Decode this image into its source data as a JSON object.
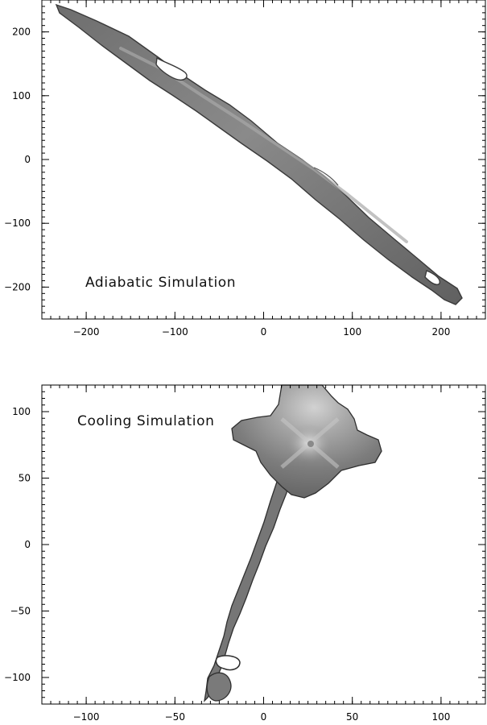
{
  "figure": {
    "panels": [
      {
        "id": "adiabatic",
        "label": "Adiabatic Simulation",
        "x_ticks": [
          {
            "value": -200,
            "label": "−200"
          },
          {
            "value": -100,
            "label": "−100"
          },
          {
            "value": 0,
            "label": "0"
          },
          {
            "value": 100,
            "label": "100"
          },
          {
            "value": 200,
            "label": "200"
          }
        ],
        "y_ticks": [
          {
            "value": 200,
            "label": "200"
          },
          {
            "value": 100,
            "label": "100"
          },
          {
            "value": 0,
            "label": "0"
          },
          {
            "value": -100,
            "label": "−100"
          },
          {
            "value": -200,
            "label": "−200"
          }
        ]
      },
      {
        "id": "cooling",
        "label": "Cooling Simulation",
        "x_ticks": [
          {
            "value": -100,
            "label": "−100"
          },
          {
            "value": -50,
            "label": "−50"
          },
          {
            "value": 0,
            "label": "0"
          },
          {
            "value": 50,
            "label": "50"
          },
          {
            "value": 100,
            "label": "100"
          }
        ],
        "y_ticks": [
          {
            "value": 100,
            "label": "100"
          },
          {
            "value": 50,
            "label": "50"
          },
          {
            "value": 0,
            "label": "0"
          },
          {
            "value": -50,
            "label": "−50"
          },
          {
            "value": -100,
            "label": "−100"
          }
        ]
      }
    ]
  }
}
